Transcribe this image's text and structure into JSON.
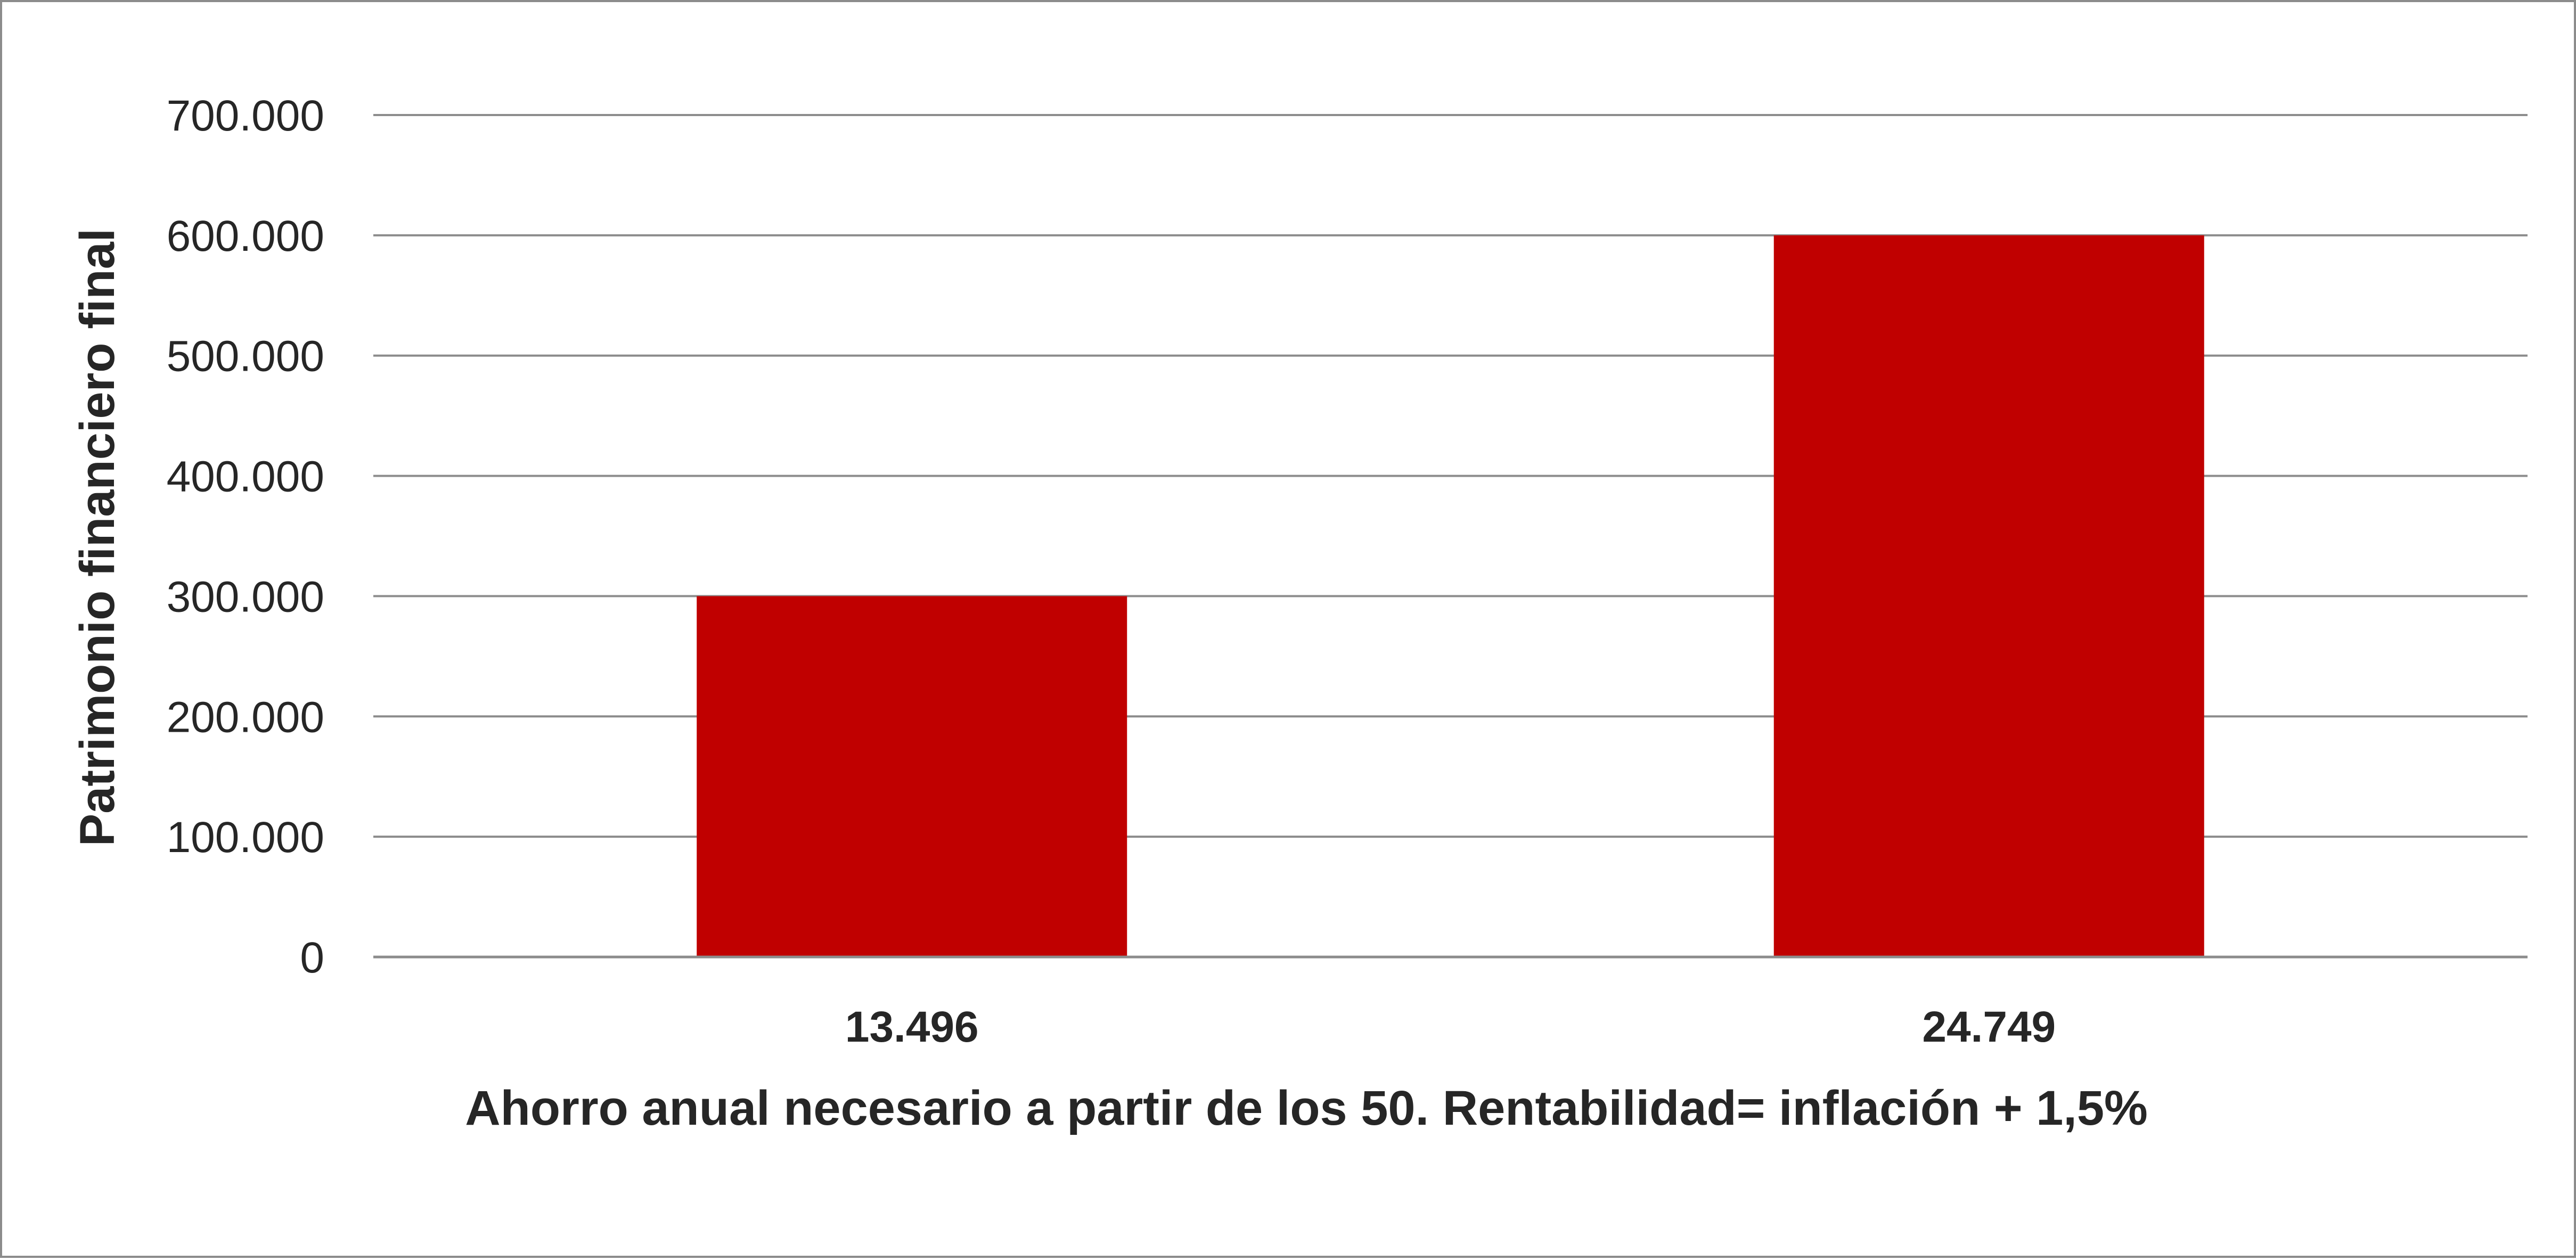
{
  "chart_data": {
    "type": "bar",
    "categories": [
      "13.496",
      "24.749"
    ],
    "series": [
      {
        "values": [
          300000,
          600000
        ],
        "color": "#c00000"
      }
    ],
    "title": "",
    "xlabel": "Ahorro anual necesario a partir de los 50. Rentabilidad= inflación + 1,5%",
    "ylabel": "Patrimonio financiero final",
    "ylim": [
      0,
      700000
    ],
    "yticks": [
      0,
      100000,
      200000,
      300000,
      400000,
      500000,
      600000,
      700000
    ],
    "ytick_labels": [
      "0",
      "100.000",
      "200.000",
      "300.000",
      "400.000",
      "500.000",
      "600.000",
      "700.000"
    ],
    "grid": true,
    "legend": "none",
    "colors": {
      "bar": "#c00000",
      "grid": "#8c8c8c",
      "text": "#262626",
      "border": "#8c8c8c"
    }
  }
}
